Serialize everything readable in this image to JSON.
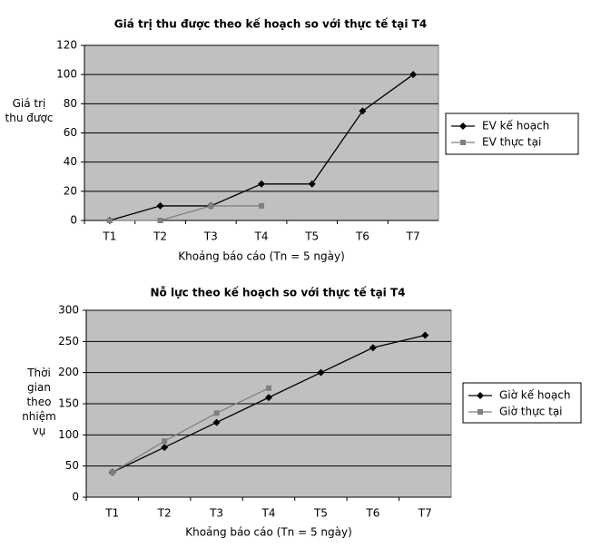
{
  "chart_data": [
    {
      "type": "line",
      "title": "Giá trị thu được theo kế hoạch so với thực tế tại T4",
      "ylabel": "Giá trị thu được",
      "xlabel": "Khoảng báo cáo (Tn = 5 ngày)",
      "categories": [
        "T1",
        "T2",
        "T3",
        "T4",
        "T5",
        "T6",
        "T7"
      ],
      "series": [
        {
          "name": "EV kế hoạch",
          "color": "#000000",
          "marker": "diamond",
          "values": [
            0,
            10,
            10,
            25,
            25,
            75,
            100
          ]
        },
        {
          "name": "EV thực tại",
          "color": "#808080",
          "marker": "square",
          "values": [
            0,
            0,
            10,
            10,
            null,
            null,
            null
          ]
        }
      ],
      "ylim": [
        0,
        120
      ],
      "yticks": [
        0,
        20,
        40,
        60,
        80,
        100,
        120
      ],
      "grid": true
    },
    {
      "type": "line",
      "title": "Nỗ lực theo kế hoạch so với thực tế tại T4",
      "ylabel": "Thời gian theo nhiệm vụ",
      "xlabel": "Khoảng báo cáo (Tn = 5 ngày)",
      "categories": [
        "T1",
        "T2",
        "T3",
        "T4",
        "T5",
        "T6",
        "T7"
      ],
      "series": [
        {
          "name": "Giờ kế hoạch",
          "color": "#000000",
          "marker": "diamond",
          "values": [
            40,
            80,
            120,
            160,
            200,
            240,
            260
          ]
        },
        {
          "name": "Giờ thực tại",
          "color": "#808080",
          "marker": "square",
          "values": [
            40,
            90,
            135,
            175,
            null,
            null,
            null
          ]
        }
      ],
      "ylim": [
        0,
        300
      ],
      "yticks": [
        0,
        50,
        100,
        150,
        200,
        250,
        300
      ],
      "grid": true
    }
  ]
}
